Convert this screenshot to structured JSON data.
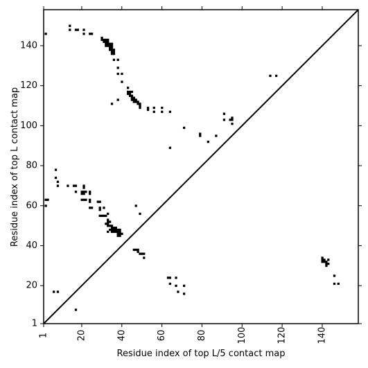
{
  "chart_data": {
    "type": "scatter",
    "title": "",
    "xlabel": "Residue index of top L/5 contact map",
    "ylabel": "Residue index of top L contact map",
    "xlim": [
      1,
      158
    ],
    "ylim": [
      1,
      158
    ],
    "xticks": [
      1,
      20,
      40,
      60,
      80,
      100,
      120,
      140
    ],
    "yticks": [
      1,
      20,
      40,
      60,
      80,
      100,
      120,
      140
    ],
    "xtick_rotation": -90,
    "diagonal_line": true,
    "grid": false,
    "legend": false,
    "colors": {
      "marker": "#000000",
      "line": "#000000",
      "frame": "#000000"
    },
    "series": [
      {
        "values": [
          [
            2,
            146
          ],
          [
            14,
            150
          ],
          [
            14,
            148
          ],
          [
            17,
            148
          ],
          [
            18,
            148
          ],
          [
            21,
            148
          ],
          [
            21,
            146
          ],
          [
            24,
            146
          ],
          [
            25,
            146
          ],
          [
            30,
            144
          ],
          [
            30,
            143
          ],
          [
            31,
            143
          ],
          [
            32,
            143
          ],
          [
            33,
            143
          ],
          [
            31,
            142
          ],
          [
            32,
            142
          ],
          [
            33,
            142
          ],
          [
            32,
            141
          ],
          [
            33,
            141
          ],
          [
            34,
            141
          ],
          [
            35,
            141
          ],
          [
            32,
            140
          ],
          [
            33,
            140
          ],
          [
            34,
            140
          ],
          [
            35,
            140
          ],
          [
            34,
            139
          ],
          [
            35,
            139
          ],
          [
            34,
            138
          ],
          [
            35,
            138
          ],
          [
            36,
            138
          ],
          [
            35,
            137
          ],
          [
            36,
            137
          ],
          [
            35,
            136
          ],
          [
            36,
            136
          ],
          [
            36,
            133
          ],
          [
            38,
            133
          ],
          [
            38,
            129
          ],
          [
            38,
            126
          ],
          [
            40,
            126
          ],
          [
            40,
            122
          ],
          [
            35,
            111
          ],
          [
            38,
            113
          ],
          [
            43,
            119
          ],
          [
            43,
            117
          ],
          [
            44,
            117
          ],
          [
            45,
            117
          ],
          [
            43,
            116
          ],
          [
            44,
            116
          ],
          [
            44,
            115
          ],
          [
            45,
            115
          ],
          [
            45,
            114
          ],
          [
            46,
            114
          ],
          [
            45,
            113
          ],
          [
            46,
            113
          ],
          [
            47,
            113
          ],
          [
            46,
            112
          ],
          [
            47,
            112
          ],
          [
            48,
            112
          ],
          [
            48,
            111
          ],
          [
            49,
            111
          ],
          [
            49,
            110
          ],
          [
            49,
            109
          ],
          [
            53,
            109
          ],
          [
            53,
            108
          ],
          [
            56,
            109
          ],
          [
            56,
            107
          ],
          [
            60,
            109
          ],
          [
            60,
            107
          ],
          [
            64,
            107
          ],
          [
            64,
            89
          ],
          [
            71,
            99
          ],
          [
            79,
            96
          ],
          [
            79,
            95
          ],
          [
            83,
            92
          ],
          [
            87,
            95
          ],
          [
            91,
            106
          ],
          [
            91,
            103
          ],
          [
            94,
            103
          ],
          [
            95,
            104
          ],
          [
            95,
            103
          ],
          [
            95,
            101
          ],
          [
            114,
            125
          ],
          [
            117,
            125
          ],
          [
            2,
            63
          ],
          [
            3,
            63
          ],
          [
            2,
            60
          ],
          [
            7,
            78
          ],
          [
            7,
            74
          ],
          [
            8,
            72
          ],
          [
            8,
            70
          ],
          [
            13,
            70
          ],
          [
            16,
            70
          ],
          [
            17,
            70
          ],
          [
            21,
            70
          ],
          [
            21,
            69
          ],
          [
            17,
            67
          ],
          [
            20,
            67
          ],
          [
            21,
            67
          ],
          [
            22,
            67
          ],
          [
            24,
            67
          ],
          [
            20,
            66
          ],
          [
            21,
            66
          ],
          [
            24,
            66
          ],
          [
            20,
            63
          ],
          [
            21,
            63
          ],
          [
            22,
            63
          ],
          [
            24,
            63
          ],
          [
            24,
            62
          ],
          [
            28,
            62
          ],
          [
            29,
            62
          ],
          [
            24,
            59
          ],
          [
            25,
            59
          ],
          [
            29,
            59
          ],
          [
            29,
            58
          ],
          [
            31,
            59
          ],
          [
            29,
            55
          ],
          [
            30,
            55
          ],
          [
            31,
            55
          ],
          [
            32,
            55
          ],
          [
            33,
            56
          ],
          [
            32,
            51
          ],
          [
            33,
            51
          ],
          [
            33,
            53
          ],
          [
            33,
            52
          ],
          [
            34,
            52
          ],
          [
            33,
            50
          ],
          [
            34,
            50
          ],
          [
            35,
            50
          ],
          [
            35,
            49
          ],
          [
            36,
            49
          ],
          [
            37,
            49
          ],
          [
            34,
            48
          ],
          [
            35,
            48
          ],
          [
            36,
            48
          ],
          [
            37,
            48
          ],
          [
            38,
            48
          ],
          [
            39,
            48
          ],
          [
            33,
            47
          ],
          [
            35,
            47
          ],
          [
            36,
            47
          ],
          [
            37,
            47
          ],
          [
            38,
            47
          ],
          [
            39,
            47
          ],
          [
            38,
            46
          ],
          [
            39,
            46
          ],
          [
            40,
            46
          ],
          [
            38,
            45
          ],
          [
            39,
            45
          ],
          [
            47,
            60
          ],
          [
            49,
            56
          ],
          [
            46,
            38
          ],
          [
            47,
            38
          ],
          [
            48,
            38
          ],
          [
            48,
            37
          ],
          [
            49,
            36
          ],
          [
            50,
            36
          ],
          [
            51,
            36
          ],
          [
            51,
            34
          ],
          [
            6,
            17
          ],
          [
            8,
            17
          ],
          [
            17,
            8
          ],
          [
            63,
            24
          ],
          [
            64,
            24
          ],
          [
            67,
            24
          ],
          [
            64,
            21
          ],
          [
            67,
            20
          ],
          [
            71,
            20
          ],
          [
            68,
            17
          ],
          [
            71,
            16
          ],
          [
            140,
            34
          ],
          [
            140,
            33
          ],
          [
            141,
            33
          ],
          [
            140,
            32
          ],
          [
            141,
            32
          ],
          [
            142,
            32
          ],
          [
            143,
            33
          ],
          [
            142,
            31
          ],
          [
            143,
            31
          ],
          [
            142,
            30
          ],
          [
            146,
            25
          ],
          [
            146,
            21
          ],
          [
            148,
            21
          ]
        ]
      }
    ]
  }
}
